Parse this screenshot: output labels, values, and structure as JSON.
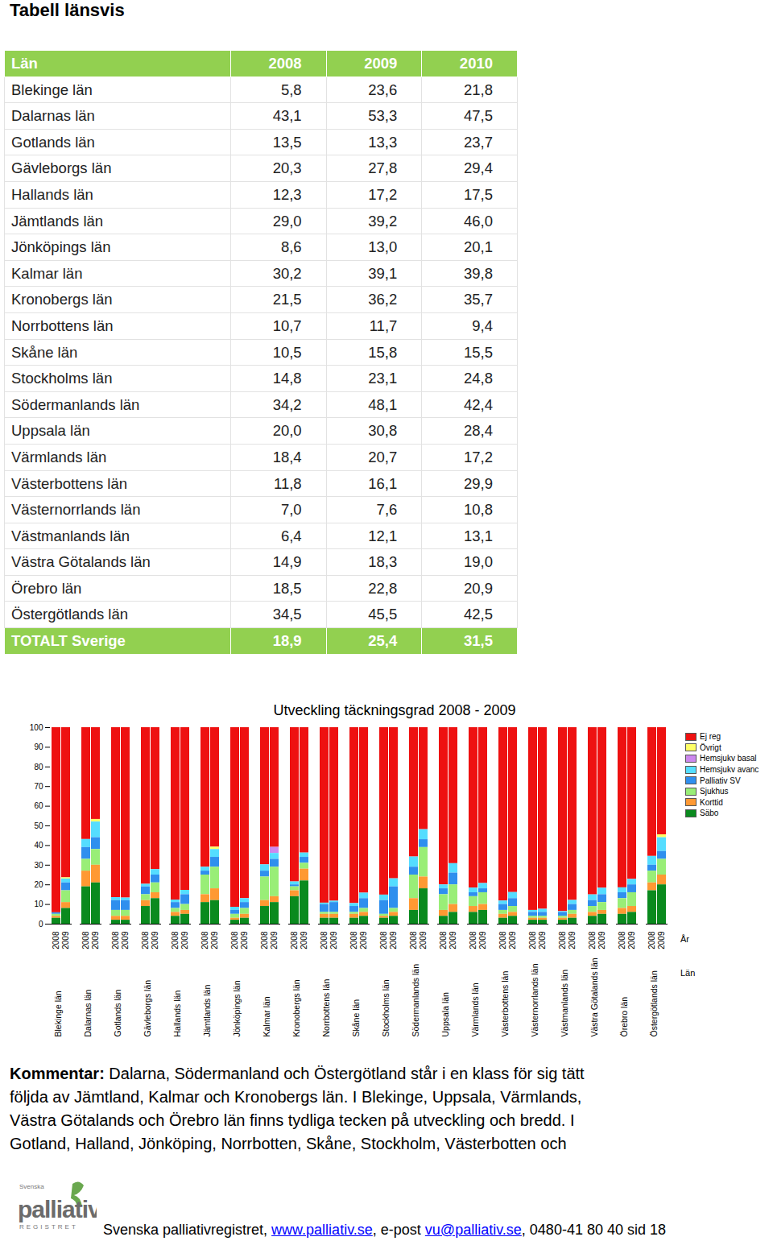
{
  "title": "Tabell länsvis",
  "table": {
    "header": [
      "Län",
      "2008",
      "2009",
      "2010"
    ],
    "rows": [
      [
        "Blekinge län",
        "5,8",
        "23,6",
        "21,8"
      ],
      [
        "Dalarnas län",
        "43,1",
        "53,3",
        "47,5"
      ],
      [
        "Gotlands län",
        "13,5",
        "13,3",
        "23,7"
      ],
      [
        "Gävleborgs län",
        "20,3",
        "27,8",
        "29,4"
      ],
      [
        "Hallands län",
        "12,3",
        "17,2",
        "17,5"
      ],
      [
        "Jämtlands län",
        "29,0",
        "39,2",
        "46,0"
      ],
      [
        "Jönköpings län",
        "8,6",
        "13,0",
        "20,1"
      ],
      [
        "Kalmar län",
        "30,2",
        "39,1",
        "39,8"
      ],
      [
        "Kronobergs län",
        "21,5",
        "36,2",
        "35,7"
      ],
      [
        "Norrbottens län",
        "10,7",
        "11,7",
        "9,4"
      ],
      [
        "Skåne län",
        "10,5",
        "15,8",
        "15,5"
      ],
      [
        "Stockholms län",
        "14,8",
        "23,1",
        "24,8"
      ],
      [
        "Södermanlands län",
        "34,2",
        "48,1",
        "42,4"
      ],
      [
        "Uppsala län",
        "20,0",
        "30,8",
        "28,4"
      ],
      [
        "Värmlands län",
        "18,4",
        "20,7",
        "17,2"
      ],
      [
        "Västerbottens län",
        "11,8",
        "16,1",
        "29,9"
      ],
      [
        "Västernorrlands län",
        "7,0",
        "7,6",
        "10,8"
      ],
      [
        "Västmanlands län",
        "6,4",
        "12,1",
        "13,1"
      ],
      [
        "Västra Götalands län",
        "14,9",
        "18,3",
        "19,0"
      ],
      [
        "Örebro län",
        "18,5",
        "22,8",
        "20,9"
      ],
      [
        "Östergötlands län",
        "34,5",
        "45,5",
        "42,5"
      ]
    ],
    "total": [
      "TOTALT Sverige",
      "18,9",
      "25,4",
      "31,5"
    ]
  },
  "chart_data": {
    "type": "bar",
    "stacked": true,
    "title": "Utveckling täckningsgrad 2008 - 2009",
    "xlabel": "År",
    "group_label": "Län",
    "categories": [
      "2008",
      "2009",
      "2008",
      "2009",
      "2008",
      "2009",
      "2008",
      "2009",
      "2008",
      "2009",
      "2008",
      "2009",
      "2008",
      "2009",
      "2008",
      "2009",
      "2008",
      "2009",
      "2008",
      "2009",
      "2008",
      "2009",
      "2008",
      "2009",
      "2008",
      "2009",
      "2008",
      "2009",
      "2008",
      "2009",
      "2008",
      "2009",
      "2008",
      "2009",
      "2008",
      "2009",
      "2008",
      "2009",
      "2008",
      "2009",
      "2008",
      "2009"
    ],
    "groups": [
      "Blekinge län",
      "Dalarnas län",
      "Gotlands län",
      "Gävleborgs län",
      "Hallands län",
      "Jämtlands län",
      "Jönköpings län",
      "Kalmar län",
      "Kronobergs län",
      "Norrbottens län",
      "Skåne län",
      "Stockholms län",
      "Södermanlands län",
      "Uppsala län",
      "Värmlands län",
      "Västerbottens län",
      "Västernorrlands län",
      "Västmanlands län",
      "Västra Götalands län",
      "Örebro län",
      "Östergötlands län"
    ],
    "ylim": [
      0,
      100
    ],
    "yticks": [
      0,
      10,
      20,
      30,
      40,
      50,
      60,
      70,
      80,
      90,
      100
    ],
    "legend": "right",
    "series": [
      {
        "name": "Ej reg",
        "color": "#ee1111",
        "values": [
          94.2,
          76.4,
          56.9,
          46.7,
          86.5,
          86.7,
          79.7,
          72.2,
          87.7,
          82.8,
          71.0,
          60.8,
          91.4,
          87.0,
          69.8,
          60.9,
          78.5,
          63.8,
          89.3,
          88.3,
          89.5,
          84.2,
          85.2,
          76.9,
          65.8,
          51.9,
          80.0,
          69.2,
          81.6,
          79.3,
          88.2,
          83.9,
          93.0,
          92.4,
          93.6,
          87.9,
          85.1,
          81.7,
          81.5,
          77.2,
          65.5,
          54.5
        ]
      },
      {
        "name": "Övrigt",
        "color": "#ffff66",
        "values": [
          0,
          0.6,
          0,
          1.3,
          0,
          0,
          0,
          0,
          0,
          0,
          0,
          1.2,
          0,
          0,
          0,
          0,
          0,
          0,
          0,
          0,
          0,
          0,
          0,
          0,
          0,
          0,
          0,
          0,
          0,
          0,
          0,
          0,
          0,
          0,
          0,
          0,
          0,
          0,
          0,
          0,
          0,
          1.5
        ]
      },
      {
        "name": "Hemsjukv basal",
        "color": "#cc88ee",
        "values": [
          0,
          0,
          0,
          0,
          0,
          0,
          0,
          0,
          0,
          0,
          0,
          0,
          0,
          0,
          0,
          3.1,
          0,
          0,
          0,
          0,
          0,
          0,
          0,
          0,
          0,
          0,
          0,
          0,
          0,
          0,
          0,
          0,
          0,
          0,
          0,
          0,
          0,
          0,
          0,
          0,
          0,
          0
        ]
      },
      {
        "name": "Hemsjukv avanc",
        "color": "#55ddff",
        "values": [
          0,
          2,
          4.1,
          8,
          1.5,
          1.3,
          1.3,
          2.8,
          1.3,
          2.2,
          2,
          4,
          1.6,
          2,
          3.2,
          3,
          1.5,
          2.2,
          0.7,
          0.7,
          1.5,
          2.8,
          2.8,
          4.1,
          5.2,
          5.1,
          2,
          4.8,
          2.4,
          2.7,
          1.8,
          3.1,
          1,
          1.6,
          0.4,
          2.1,
          2.9,
          3.3,
          2.5,
          2.8,
          4.5,
          7
        ]
      },
      {
        "name": "Palliativ SV",
        "color": "#2f8fee",
        "values": [
          0.8,
          4,
          6,
          6,
          5,
          5,
          4,
          4,
          3,
          5,
          2,
          5,
          2,
          3,
          3,
          4,
          1,
          3,
          4,
          5,
          3,
          5,
          7,
          11,
          4,
          4,
          3,
          6,
          2,
          2,
          3,
          4,
          2,
          2,
          2,
          3,
          3,
          4,
          3,
          4,
          3,
          4
        ]
      },
      {
        "name": "Sjukhus",
        "color": "#99ee77",
        "values": [
          1,
          6,
          6,
          8,
          3,
          3,
          3,
          5,
          2,
          3,
          10,
          11,
          2,
          3,
          12,
          15,
          2,
          3,
          1,
          1,
          1,
          2,
          1,
          2,
          12,
          15,
          8,
          10,
          5,
          6,
          2,
          3,
          1,
          1,
          1,
          2,
          3,
          4,
          5,
          7,
          6,
          8
        ]
      },
      {
        "name": "Korttid",
        "color": "#ff9933",
        "values": [
          1,
          3,
          8,
          9,
          2,
          2,
          3,
          3,
          2,
          2,
          4,
          6,
          1,
          2,
          3,
          3,
          3,
          6,
          2,
          2,
          2,
          2,
          1,
          2,
          6,
          6,
          3,
          4,
          3,
          3,
          2,
          2,
          1,
          1,
          1,
          2,
          2,
          2,
          3,
          3,
          4,
          5
        ]
      },
      {
        "name": "Säbo",
        "color": "#0a8a1e",
        "values": [
          3,
          8,
          19,
          21,
          2,
          2,
          9,
          13,
          4,
          5,
          11,
          12,
          2,
          3,
          9,
          11,
          14,
          22,
          3,
          3,
          3,
          4,
          3,
          4,
          7,
          18,
          4,
          6,
          6,
          7,
          3,
          4,
          2,
          2,
          2,
          3,
          4,
          5,
          5,
          6,
          17,
          20
        ]
      }
    ]
  },
  "comment": {
    "label": "Kommentar:",
    "lines": [
      "Dalarna, Södermanland och Östergötland står i en klass för sig tätt",
      "följda av Jämtland, Kalmar och Kronobergs län. I Blekinge, Uppsala, Värmlands,",
      "Västra Götalands och Örebro län finns tydliga tecken på utveckling och bredd. I",
      "Gotland, Halland, Jönköping, Norrbotten, Skåne, Stockholm, Västerbotten och"
    ]
  },
  "footer": {
    "logo": {
      "top": "Svenska",
      "name": "palliativ",
      "sub": "REGISTRET"
    },
    "parts": [
      {
        "text": "Svenska palliativregistret, "
      },
      {
        "text": "www.palliativ.se",
        "link": true
      },
      {
        "text": ", e-post "
      },
      {
        "text": "vu@palliativ.se",
        "link": true
      },
      {
        "text": ", 0480-41 80 40  sid 18"
      }
    ]
  }
}
